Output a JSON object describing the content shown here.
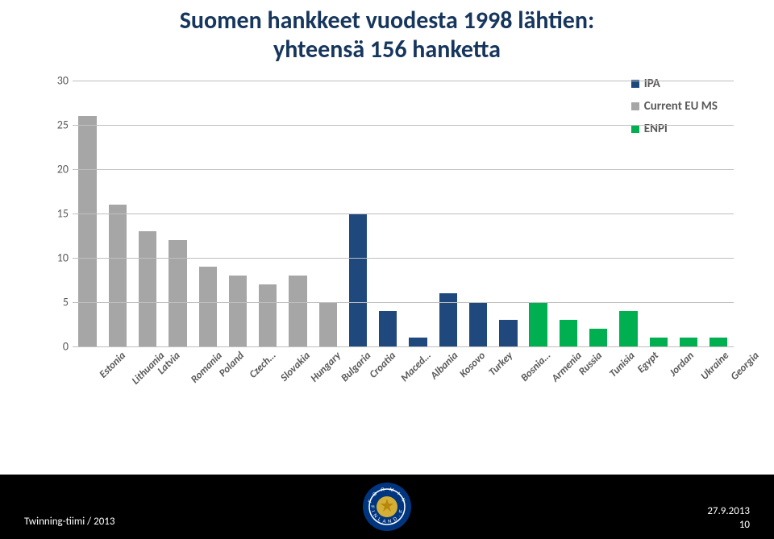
{
  "title_line1": "Suomen hankkeet vuodesta 1998 lähtien:",
  "title_line2": "yhteensä 156 hanketta",
  "chart": {
    "type": "bar",
    "ylim": [
      0,
      30
    ],
    "ytick_step": 5,
    "grid_color": "#bfbfbf",
    "axis_font_color": "#595959",
    "axis_font_size": 14,
    "xlabel_font_size": 13,
    "legend": [
      {
        "label": "IPA",
        "color": "#1f497d"
      },
      {
        "label": "Current EU MS",
        "color": "#a6a6a6"
      },
      {
        "label": "ENPI",
        "color": "#00b050"
      }
    ],
    "bars": [
      {
        "label": "Estonia",
        "value": 26,
        "color": "#a6a6a6"
      },
      {
        "label": "Lithuania",
        "value": 16,
        "color": "#a6a6a6"
      },
      {
        "label": "Latvia",
        "value": 13,
        "color": "#a6a6a6"
      },
      {
        "label": "Romania",
        "value": 12,
        "color": "#a6a6a6"
      },
      {
        "label": "Poland",
        "value": 9,
        "color": "#a6a6a6"
      },
      {
        "label": "Czech…",
        "value": 8,
        "color": "#a6a6a6"
      },
      {
        "label": "Slovakia",
        "value": 7,
        "color": "#a6a6a6"
      },
      {
        "label": "Hungary",
        "value": 8,
        "color": "#a6a6a6"
      },
      {
        "label": "Bulgaria",
        "value": 5,
        "color": "#a6a6a6"
      },
      {
        "label": "Croatia",
        "value": 15,
        "color": "#1f497d"
      },
      {
        "label": "Maced…",
        "value": 4,
        "color": "#1f497d"
      },
      {
        "label": "Albania",
        "value": 1,
        "color": "#1f497d"
      },
      {
        "label": "Kosovo",
        "value": 6,
        "color": "#1f497d"
      },
      {
        "label": "Turkey",
        "value": 5,
        "color": "#1f497d"
      },
      {
        "label": "Bosnia…",
        "value": 3,
        "color": "#1f497d"
      },
      {
        "label": "Armenia",
        "value": 5,
        "color": "#00b050"
      },
      {
        "label": "Russia",
        "value": 3,
        "color": "#00b050"
      },
      {
        "label": "Tunisia",
        "value": 2,
        "color": "#00b050"
      },
      {
        "label": "Egypt",
        "value": 4,
        "color": "#00b050"
      },
      {
        "label": "Jordan",
        "value": 1,
        "color": "#00b050"
      },
      {
        "label": "Ukraine",
        "value": 1,
        "color": "#00b050"
      },
      {
        "label": "Georgia",
        "value": 1,
        "color": "#00b050"
      }
    ]
  },
  "footer": {
    "left": "Twinning-tiimi / 2013",
    "date": "27.9.2013",
    "page": "10",
    "emblem_outer": "#003580",
    "emblem_inner": "#d4af37",
    "emblem_text_top": "FORMIN",
    "emblem_text_bottom": "FINLAND"
  }
}
